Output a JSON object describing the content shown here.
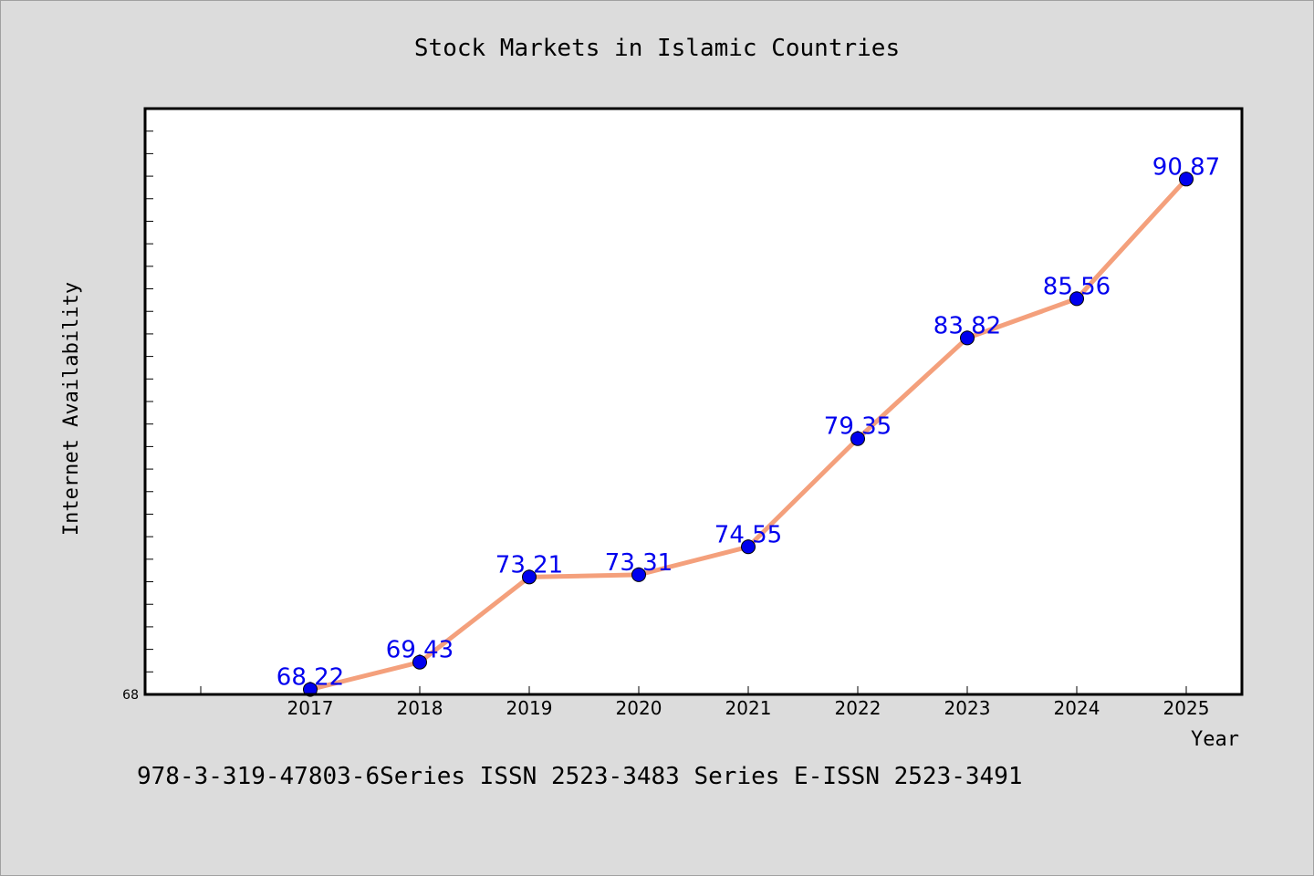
{
  "chart_data": {
    "type": "line",
    "title": "Stock Markets in Islamic Countries",
    "xlabel": "Year",
    "ylabel": "Internet Availability",
    "categories": [
      "2017",
      "2018",
      "2019",
      "2020",
      "2021",
      "2022",
      "2023",
      "2024",
      "2025"
    ],
    "series": [
      {
        "values": [
          68.22,
          69.43,
          73.21,
          73.31,
          74.55,
          79.35,
          83.82,
          85.56,
          90.87
        ],
        "line_color": "#f4a07c",
        "marker_color": "#0000ee"
      }
    ],
    "data_labels": [
      "68.22",
      "69.43",
      "73.21",
      "73.31",
      "74.55",
      "79.35",
      "83.82",
      "85.56",
      "90.87"
    ],
    "y_tick_label": "68",
    "ylim": [
      68,
      94
    ],
    "y_minor_tick_step": 1,
    "grid": false,
    "legend": "none",
    "background_color": "#dcdcdc",
    "plot_background_color": "#ffffff",
    "label_color": "#0000ee"
  },
  "caption": "978-3-319-47803-6Series ISSN 2523-3483 Series E-ISSN 2523-3491"
}
